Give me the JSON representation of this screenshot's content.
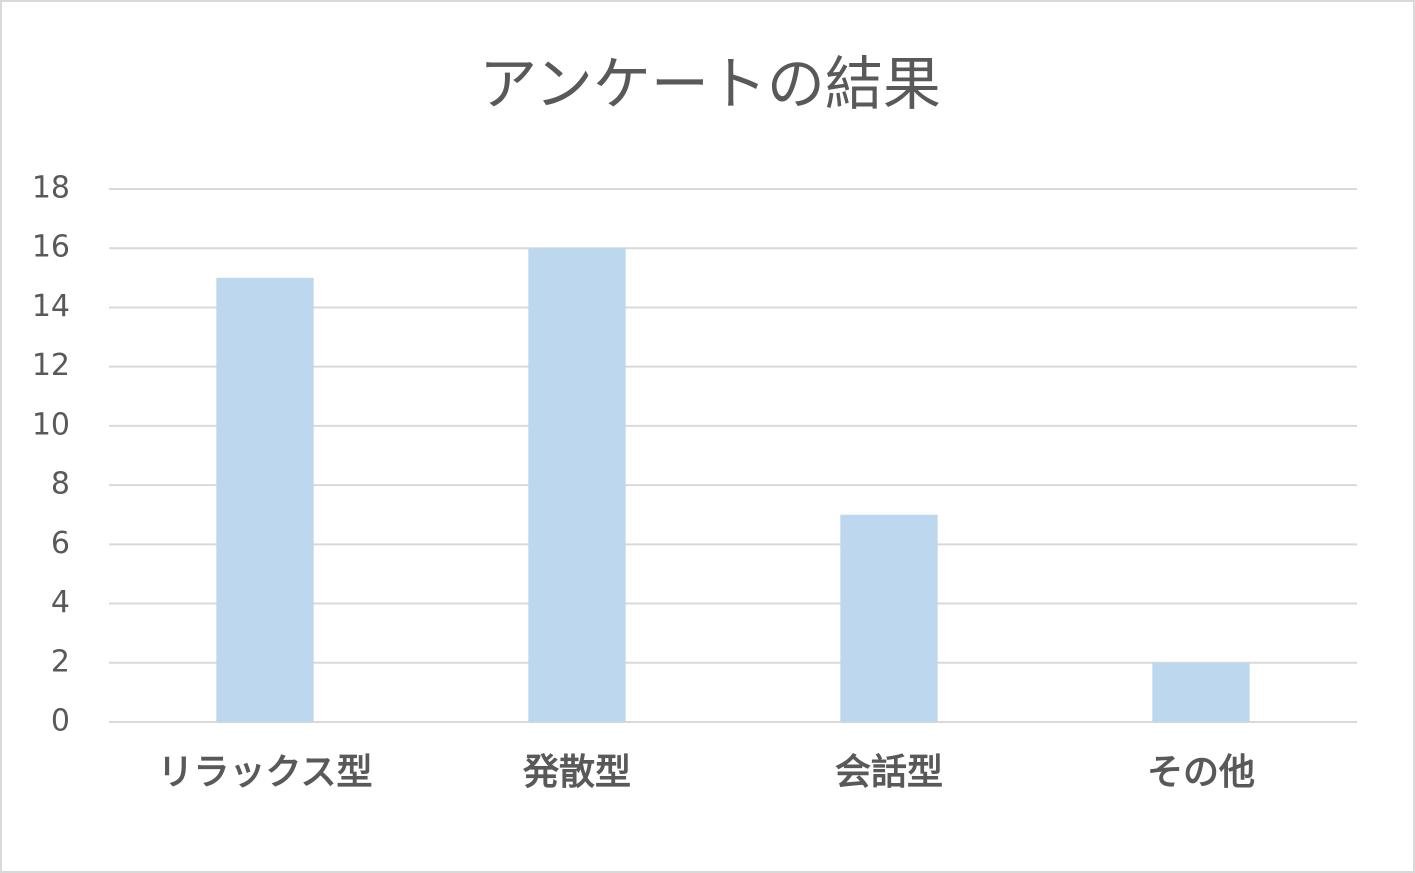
{
  "chart_data": {
    "type": "bar",
    "title": "アンケートの結果",
    "categories": [
      "リラックス型",
      "発散型",
      "会話型",
      "その他"
    ],
    "values": [
      15,
      16,
      7,
      2
    ],
    "color": "#bdd7ee",
    "ylim": [
      0,
      18
    ],
    "yticks": [
      0,
      2,
      4,
      6,
      8,
      10,
      12,
      14,
      16,
      18
    ],
    "grid": true
  }
}
